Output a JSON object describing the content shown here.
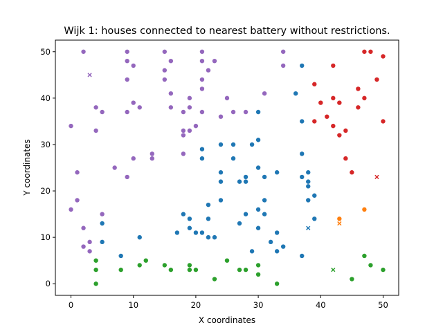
{
  "chart_data": {
    "type": "scatter",
    "title": "Wijk 1: houses connected to nearest battery without restrictions.",
    "xlabel": "X coordinates",
    "ylabel": "Y coordinates",
    "xlim": [
      -2.5,
      52.5
    ],
    "ylim": [
      -2.5,
      52.5
    ],
    "xticks": [
      0,
      10,
      20,
      30,
      40,
      50
    ],
    "yticks": [
      0,
      10,
      20,
      30,
      40,
      50
    ],
    "grid": false,
    "legend": "none",
    "series": [
      {
        "color": "#9467bd",
        "houses": [
          [
            0,
            34
          ],
          [
            0,
            16
          ],
          [
            1,
            24
          ],
          [
            1,
            18
          ],
          [
            2,
            50
          ],
          [
            2,
            12
          ],
          [
            2,
            8
          ],
          [
            3,
            9
          ],
          [
            3,
            7
          ],
          [
            4,
            38
          ],
          [
            4,
            33
          ],
          [
            5,
            37
          ],
          [
            5,
            15
          ],
          [
            7,
            25
          ],
          [
            9,
            50
          ],
          [
            9,
            48
          ],
          [
            9,
            44
          ],
          [
            9,
            37
          ],
          [
            9,
            23
          ],
          [
            10,
            47
          ],
          [
            10,
            39
          ],
          [
            10,
            27
          ],
          [
            11,
            38
          ],
          [
            13,
            28
          ],
          [
            13,
            27
          ],
          [
            15,
            50
          ],
          [
            15,
            46
          ],
          [
            15,
            44
          ],
          [
            16,
            48
          ],
          [
            16,
            41
          ],
          [
            16,
            38
          ],
          [
            18,
            37
          ],
          [
            18,
            33
          ],
          [
            18,
            32
          ],
          [
            18,
            28
          ],
          [
            19,
            40
          ],
          [
            19,
            38
          ],
          [
            19,
            33
          ],
          [
            20,
            34
          ],
          [
            21,
            50
          ],
          [
            21,
            48
          ],
          [
            21,
            44
          ],
          [
            21,
            42
          ],
          [
            21,
            37
          ],
          [
            22,
            46
          ],
          [
            23,
            48
          ],
          [
            24,
            36
          ],
          [
            25,
            40
          ],
          [
            26,
            37
          ],
          [
            28,
            37
          ],
          [
            31,
            41
          ],
          [
            34,
            50
          ],
          [
            34,
            47
          ]
        ],
        "batteries": [
          [
            3,
            45
          ]
        ]
      },
      {
        "color": "#1f77b4",
        "houses": [
          [
            5,
            13
          ],
          [
            5,
            9
          ],
          [
            8,
            6
          ],
          [
            11,
            10
          ],
          [
            17,
            11
          ],
          [
            18,
            15
          ],
          [
            19,
            12
          ],
          [
            19,
            14
          ],
          [
            20,
            11
          ],
          [
            21,
            11
          ],
          [
            21,
            29
          ],
          [
            21,
            27
          ],
          [
            22,
            17
          ],
          [
            22,
            14
          ],
          [
            22,
            10
          ],
          [
            23,
            10
          ],
          [
            24,
            30
          ],
          [
            24,
            24
          ],
          [
            24,
            22
          ],
          [
            24,
            18
          ],
          [
            26,
            30
          ],
          [
            26,
            27
          ],
          [
            27,
            22
          ],
          [
            27,
            13
          ],
          [
            28,
            23
          ],
          [
            28,
            22
          ],
          [
            28,
            15
          ],
          [
            29,
            30
          ],
          [
            29,
            7
          ],
          [
            30,
            37
          ],
          [
            30,
            31
          ],
          [
            30,
            25
          ],
          [
            30,
            16
          ],
          [
            30,
            12
          ],
          [
            31,
            23
          ],
          [
            31,
            18
          ],
          [
            31,
            15
          ],
          [
            32,
            9
          ],
          [
            33,
            24
          ],
          [
            33,
            11
          ],
          [
            33,
            7
          ],
          [
            34,
            8
          ],
          [
            36,
            41
          ],
          [
            37,
            47
          ],
          [
            37,
            35
          ],
          [
            37,
            28
          ],
          [
            37,
            23
          ],
          [
            37,
            6
          ],
          [
            38,
            24
          ],
          [
            38,
            22
          ],
          [
            38,
            21
          ],
          [
            38,
            18
          ],
          [
            39,
            19
          ],
          [
            39,
            14
          ]
        ],
        "batteries": [
          [
            38,
            12
          ]
        ]
      },
      {
        "color": "#2ca02c",
        "houses": [
          [
            4,
            5
          ],
          [
            4,
            3
          ],
          [
            4,
            0
          ],
          [
            8,
            3
          ],
          [
            11,
            4
          ],
          [
            12,
            5
          ],
          [
            15,
            4
          ],
          [
            16,
            3
          ],
          [
            19,
            4
          ],
          [
            19,
            3
          ],
          [
            20,
            3
          ],
          [
            23,
            1
          ],
          [
            25,
            5
          ],
          [
            27,
            3
          ],
          [
            28,
            3
          ],
          [
            30,
            4
          ],
          [
            30,
            2
          ],
          [
            33,
            0
          ],
          [
            45,
            1
          ],
          [
            47,
            6
          ],
          [
            48,
            4
          ],
          [
            50,
            3
          ]
        ],
        "batteries": [
          [
            42,
            3
          ]
        ]
      },
      {
        "color": "#ff7f0e",
        "houses": [
          [
            43,
            14
          ],
          [
            47,
            16
          ]
        ],
        "batteries": [
          [
            43,
            13
          ]
        ]
      },
      {
        "color": "#d62728",
        "houses": [
          [
            39,
            43
          ],
          [
            39,
            35
          ],
          [
            40,
            39
          ],
          [
            41,
            36
          ],
          [
            42,
            47
          ],
          [
            42,
            40
          ],
          [
            42,
            34
          ],
          [
            43,
            39
          ],
          [
            43,
            32
          ],
          [
            44,
            33
          ],
          [
            44,
            27
          ],
          [
            45,
            24
          ],
          [
            46,
            42
          ],
          [
            46,
            38
          ],
          [
            47,
            50
          ],
          [
            47,
            40
          ],
          [
            48,
            50
          ],
          [
            49,
            44
          ],
          [
            50,
            49
          ],
          [
            50,
            35
          ]
        ],
        "batteries": [
          [
            49,
            23
          ]
        ]
      }
    ]
  }
}
